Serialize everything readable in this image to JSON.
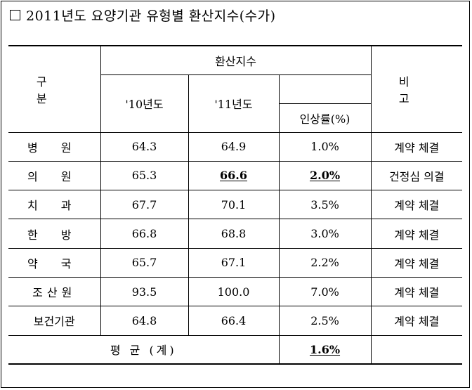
{
  "title": "2011년도 요양기관 유형별 환산지수(수가)",
  "headers": {
    "category": "구 분",
    "conversion_index": "환산지수",
    "year_2010": "'10년도",
    "year_2011": "'11년도",
    "increase_rate": "인상률(%)",
    "remarks": "비 고"
  },
  "rows": [
    {
      "category": "병 원",
      "y2010": "64.3",
      "y2011": "64.9",
      "rate": "1.0%",
      "remark": "계약 체결"
    },
    {
      "category": "의 원",
      "y2010": "65.3",
      "y2011": "66.6",
      "rate": "2.0%",
      "remark": "건정심 의결"
    },
    {
      "category": "치 과",
      "y2010": "67.7",
      "y2011": "70.1",
      "rate": "3.5%",
      "remark": "계약 체결"
    },
    {
      "category": "한 방",
      "y2010": "66.8",
      "y2011": "68.8",
      "rate": "3.0%",
      "remark": "계약 체결"
    },
    {
      "category": "약 국",
      "y2010": "65.7",
      "y2011": "67.1",
      "rate": "2.2%",
      "remark": "계약 체결"
    },
    {
      "category": "조산원",
      "y2010": "93.5",
      "y2011": "100.0",
      "rate": "7.0%",
      "remark": "계약 체결"
    },
    {
      "category": "보건기관",
      "y2010": "64.8",
      "y2011": "66.4",
      "rate": "2.5%",
      "remark": "계약 체결"
    }
  ],
  "average": {
    "label": "평 균 (계)",
    "rate": "1.6%"
  }
}
